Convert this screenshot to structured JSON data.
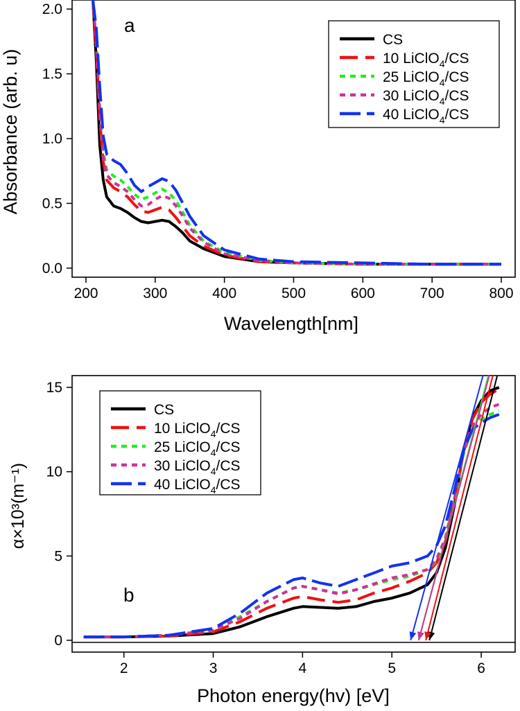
{
  "legend_entries": [
    {
      "key": "cs",
      "label": "CS",
      "sub": "",
      "suffix": ""
    },
    {
      "key": "l10",
      "label": "10 LiClO",
      "sub": "4",
      "suffix": "/CS"
    },
    {
      "key": "l25",
      "label": "25 LiClO",
      "sub": "4",
      "suffix": "/CS"
    },
    {
      "key": "l30",
      "label": "30 LiClO",
      "sub": "4",
      "suffix": "/CS"
    },
    {
      "key": "l40",
      "label": "40 LiClO",
      "sub": "4",
      "suffix": "/CS"
    }
  ],
  "series_styles": {
    "cs": {
      "color": "#000000",
      "dash": "none"
    },
    "l10": {
      "color": "#ee1111",
      "dash": "26 11"
    },
    "l25": {
      "color": "#22ee22",
      "dash": "8 7"
    },
    "l30": {
      "color": "#cc3399",
      "dash": "8 7"
    },
    "l40": {
      "color": "#1133ee",
      "dash": "30 9"
    }
  },
  "chart_data": [
    {
      "type": "line",
      "panel_label": "a",
      "xlabel": "Wavelength[nm]",
      "ylabel": "Absorbance (arb. u)",
      "xlim": [
        180,
        820
      ],
      "ylim": [
        -0.07,
        2.07
      ],
      "xticks": [
        "200",
        "300",
        "400",
        "500",
        "600",
        "700",
        "800"
      ],
      "yticks": [
        "0.0",
        "0.5",
        "1.0",
        "1.5",
        "2.0"
      ],
      "legend_position": "top-right",
      "series": [
        {
          "key": "cs",
          "x": [
            210,
            215,
            220,
            225,
            230,
            240,
            250,
            260,
            270,
            280,
            290,
            300,
            310,
            320,
            330,
            340,
            350,
            370,
            400,
            450,
            500,
            600,
            700,
            800
          ],
          "y": [
            2.07,
            1.6,
            0.95,
            0.68,
            0.55,
            0.48,
            0.46,
            0.43,
            0.39,
            0.36,
            0.35,
            0.36,
            0.37,
            0.36,
            0.32,
            0.27,
            0.21,
            0.15,
            0.09,
            0.05,
            0.04,
            0.03,
            0.03,
            0.03
          ]
        },
        {
          "key": "l10",
          "x": [
            210,
            215,
            220,
            225,
            230,
            240,
            250,
            260,
            270,
            280,
            290,
            300,
            310,
            320,
            330,
            340,
            350,
            370,
            400,
            450,
            500,
            600,
            700,
            800
          ],
          "y": [
            2.07,
            1.7,
            1.15,
            0.82,
            0.68,
            0.62,
            0.59,
            0.55,
            0.49,
            0.44,
            0.43,
            0.45,
            0.47,
            0.45,
            0.39,
            0.32,
            0.25,
            0.17,
            0.1,
            0.05,
            0.04,
            0.03,
            0.03,
            0.03
          ]
        },
        {
          "key": "l25",
          "x": [
            210,
            215,
            220,
            225,
            230,
            240,
            250,
            260,
            270,
            280,
            290,
            300,
            310,
            320,
            330,
            340,
            350,
            370,
            400,
            450,
            500,
            600,
            700,
            800
          ],
          "y": [
            2.07,
            1.75,
            1.25,
            0.9,
            0.76,
            0.71,
            0.68,
            0.63,
            0.57,
            0.53,
            0.55,
            0.58,
            0.61,
            0.58,
            0.52,
            0.43,
            0.33,
            0.21,
            0.12,
            0.06,
            0.04,
            0.03,
            0.03,
            0.03
          ]
        },
        {
          "key": "l30",
          "x": [
            210,
            215,
            220,
            225,
            230,
            240,
            250,
            260,
            270,
            280,
            290,
            300,
            310,
            320,
            330,
            340,
            350,
            370,
            400,
            450,
            500,
            600,
            700,
            800
          ],
          "y": [
            2.07,
            1.73,
            1.2,
            0.86,
            0.72,
            0.66,
            0.63,
            0.59,
            0.53,
            0.48,
            0.49,
            0.53,
            0.56,
            0.54,
            0.48,
            0.4,
            0.31,
            0.2,
            0.11,
            0.06,
            0.04,
            0.03,
            0.03,
            0.03
          ]
        },
        {
          "key": "l40",
          "x": [
            210,
            215,
            220,
            225,
            230,
            240,
            250,
            260,
            270,
            280,
            290,
            300,
            310,
            320,
            330,
            340,
            350,
            370,
            400,
            450,
            500,
            600,
            700,
            800
          ],
          "y": [
            2.07,
            1.85,
            1.4,
            1.02,
            0.88,
            0.83,
            0.8,
            0.73,
            0.64,
            0.59,
            0.63,
            0.66,
            0.69,
            0.67,
            0.6,
            0.5,
            0.4,
            0.25,
            0.14,
            0.07,
            0.05,
            0.04,
            0.03,
            0.03
          ]
        }
      ]
    },
    {
      "type": "line",
      "panel_label": "b",
      "xlabel": "Photon energy(hv) [eV]",
      "ylabel": "α×10³(m⁻¹)",
      "xlim": [
        1.42,
        6.38
      ],
      "ylim": [
        -0.7,
        15.7
      ],
      "xticks": [
        "2",
        "3",
        "4",
        "5",
        "6"
      ],
      "yticks": [
        "0",
        "5",
        "10",
        "15"
      ],
      "legend_position": "top-left",
      "series": [
        {
          "key": "cs",
          "x": [
            1.55,
            2,
            2.5,
            3,
            3.3,
            3.6,
            3.9,
            4.0,
            4.2,
            4.4,
            4.6,
            4.8,
            5.0,
            5.2,
            5.4,
            5.5,
            5.6,
            5.7,
            5.8,
            5.9,
            6.0,
            6.1,
            6.2
          ],
          "y": [
            0.2,
            0.2,
            0.25,
            0.4,
            0.8,
            1.4,
            1.9,
            2.0,
            1.95,
            1.9,
            2.0,
            2.3,
            2.5,
            2.8,
            3.3,
            4.0,
            5.5,
            8.0,
            11.2,
            13.2,
            14.2,
            14.8,
            15.0
          ]
        },
        {
          "key": "l10",
          "x": [
            1.55,
            2,
            2.5,
            3,
            3.3,
            3.6,
            3.9,
            4.0,
            4.2,
            4.4,
            4.6,
            4.8,
            5.0,
            5.2,
            5.4,
            5.5,
            5.6,
            5.7,
            5.8,
            5.9,
            6.0,
            6.1,
            6.2
          ],
          "y": [
            0.2,
            0.2,
            0.25,
            0.5,
            1.1,
            1.9,
            2.5,
            2.6,
            2.4,
            2.25,
            2.4,
            2.8,
            3.1,
            3.5,
            4.0,
            4.6,
            5.9,
            8.3,
            11.1,
            13.1,
            14.1,
            14.6,
            14.9
          ]
        },
        {
          "key": "l25",
          "x": [
            1.55,
            2,
            2.5,
            3,
            3.3,
            3.6,
            3.9,
            4.0,
            4.2,
            4.4,
            4.6,
            4.8,
            5.0,
            5.2,
            5.4,
            5.5,
            5.6,
            5.7,
            5.8,
            5.9,
            6.0,
            6.1,
            6.2
          ],
          "y": [
            0.2,
            0.2,
            0.3,
            0.6,
            1.4,
            2.3,
            3.1,
            3.2,
            3.0,
            2.8,
            3.0,
            3.3,
            3.6,
            3.8,
            4.2,
            4.7,
            6.0,
            8.3,
            11.0,
            12.6,
            13.1,
            13.4,
            13.6
          ]
        },
        {
          "key": "l30",
          "x": [
            1.55,
            2,
            2.5,
            3,
            3.3,
            3.6,
            3.9,
            4.0,
            4.2,
            4.4,
            4.6,
            4.8,
            5.0,
            5.2,
            5.4,
            5.5,
            5.6,
            5.7,
            5.8,
            5.9,
            6.0,
            6.1,
            6.2
          ],
          "y": [
            0.2,
            0.2,
            0.3,
            0.6,
            1.3,
            2.3,
            3.1,
            3.2,
            3.0,
            2.75,
            3.0,
            3.35,
            3.7,
            3.9,
            4.2,
            4.8,
            6.1,
            8.4,
            11.1,
            12.7,
            13.4,
            13.8,
            14.0
          ]
        },
        {
          "key": "l40",
          "x": [
            1.55,
            2,
            2.5,
            3,
            3.3,
            3.6,
            3.9,
            4.0,
            4.2,
            4.4,
            4.6,
            4.8,
            5.0,
            5.2,
            5.4,
            5.5,
            5.6,
            5.7,
            5.8,
            5.9,
            6.0,
            6.1,
            6.2
          ],
          "y": [
            0.2,
            0.2,
            0.3,
            0.7,
            1.6,
            2.8,
            3.6,
            3.7,
            3.4,
            3.2,
            3.6,
            4.0,
            4.4,
            4.6,
            5.0,
            5.6,
            6.8,
            8.9,
            11.2,
            12.5,
            12.9,
            13.2,
            13.4
          ]
        }
      ],
      "fit_lines": [
        {
          "key": "cs",
          "x": [
            5.42,
            6.18
          ],
          "y": [
            0,
            15.7
          ]
        },
        {
          "key": "l10",
          "x": [
            5.38,
            6.13
          ],
          "y": [
            0,
            15.7
          ]
        },
        {
          "key": "l25",
          "x": [
            5.3,
            6.08
          ],
          "y": [
            0,
            15.7
          ]
        },
        {
          "key": "l30",
          "x": [
            5.3,
            6.09
          ],
          "y": [
            0,
            15.7
          ]
        },
        {
          "key": "l40",
          "x": [
            5.21,
            6.02
          ],
          "y": [
            0,
            15.7
          ]
        }
      ]
    }
  ]
}
